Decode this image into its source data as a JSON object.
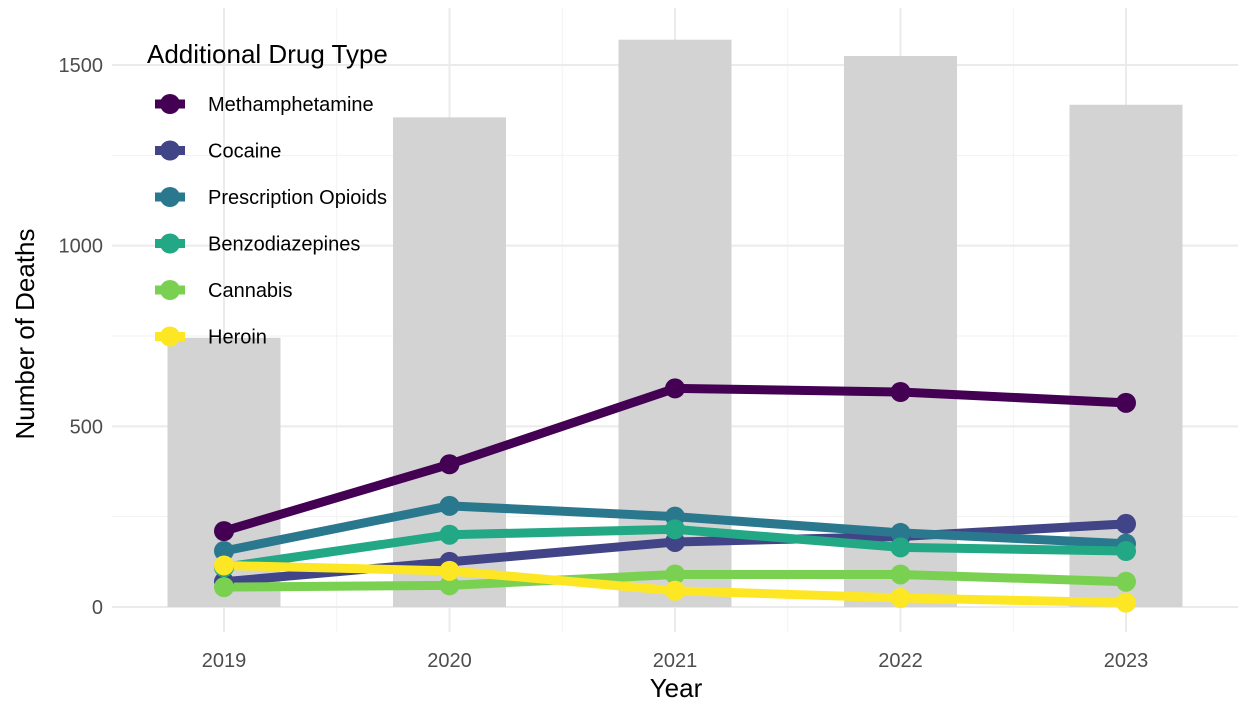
{
  "chart_data": {
    "type": "bar+line",
    "title": "",
    "xlabel": "Year",
    "ylabel": "Number of Deaths",
    "categories": [
      "2019",
      "2020",
      "2021",
      "2022",
      "2023"
    ],
    "ylim": [
      0,
      1650
    ],
    "y_ticks": [
      0,
      500,
      1000,
      1500
    ],
    "grid": true,
    "bars": {
      "color": "#d3d3d3",
      "values": [
        745,
        1355,
        1570,
        1525,
        1390
      ]
    },
    "legend": {
      "title": "Additional Drug Type",
      "position": "top-left"
    },
    "series": [
      {
        "name": "Methamphetamine",
        "color": "#440154",
        "values": [
          210,
          395,
          605,
          595,
          565
        ]
      },
      {
        "name": "Cocaine",
        "color": "#414487",
        "values": [
          70,
          125,
          180,
          195,
          230
        ]
      },
      {
        "name": "Prescription Opioids",
        "color": "#2a788e",
        "values": [
          155,
          280,
          250,
          205,
          175
        ]
      },
      {
        "name": "Benzodiazepines",
        "color": "#22a884",
        "values": [
          110,
          200,
          215,
          165,
          155
        ]
      },
      {
        "name": "Cannabis",
        "color": "#7ad151",
        "values": [
          55,
          60,
          90,
          90,
          70
        ]
      },
      {
        "name": "Heroin",
        "color": "#fde725",
        "values": [
          115,
          100,
          45,
          25,
          12
        ]
      }
    ]
  }
}
